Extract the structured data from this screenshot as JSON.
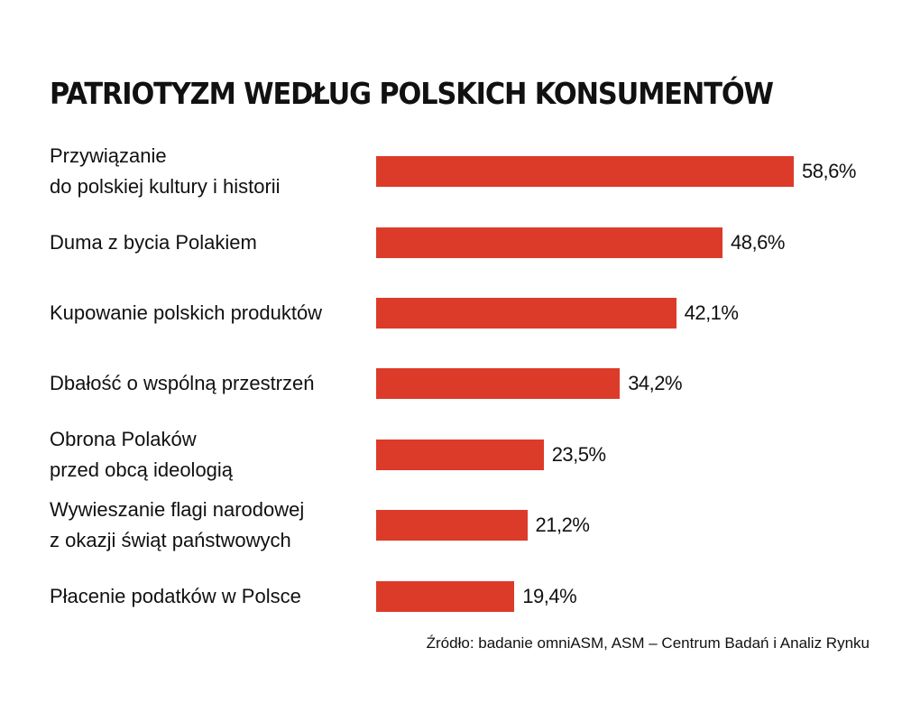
{
  "chart_data": {
    "type": "bar",
    "orientation": "horizontal",
    "title": "PATRIOTYZM WEDŁUG POLSKICH KONSUMENTÓW",
    "categories": [
      [
        "Przywiązanie",
        "do polskiej kultury i historii"
      ],
      [
        "Duma z bycia Polakiem"
      ],
      [
        "Kupowanie polskich produktów"
      ],
      [
        "Dbałość o wspólną przestrzeń"
      ],
      [
        "Obrona Polaków",
        "przed obcą ideologią"
      ],
      [
        "Wywieszanie flagi narodowej",
        "z okazji świąt państwowych"
      ],
      [
        "Płacenie podatków w Polsce"
      ]
    ],
    "values": [
      58.6,
      48.6,
      42.1,
      34.2,
      23.5,
      21.2,
      19.4
    ],
    "value_labels": [
      "58,6%",
      "48,6%",
      "42,1%",
      "34,2%",
      "23,5%",
      "21,2%",
      "19,4%"
    ],
    "unit": "%",
    "xlim": [
      0,
      100
    ],
    "grid": false,
    "legend": "none",
    "bar_color": "#dd3b2a"
  },
  "source": "Źródło: badanie omniASM, ASM – Centrum Badań i Analiz Rynku"
}
